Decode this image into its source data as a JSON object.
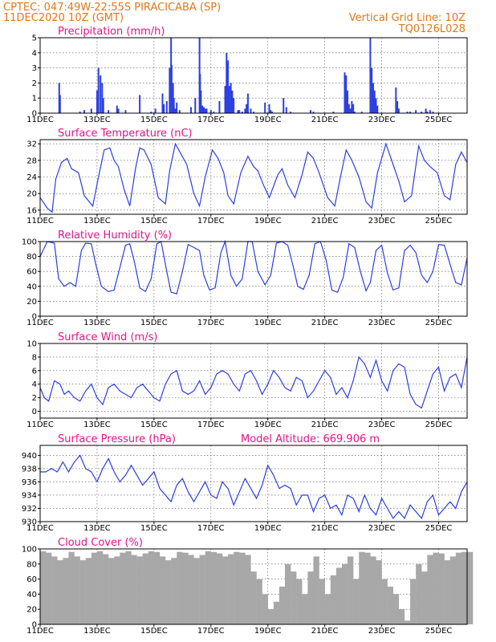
{
  "header": {
    "line1_left": "CPTEC:  047:49W-22:55S  PIRACICABA (SP)",
    "line2_left": "11DEC2020 10Z (GMT)",
    "line1_right": "Vertical Grid Line: 10Z",
    "line2_right": "TQ0126L028"
  },
  "colors": {
    "line": "#2c3fe0",
    "bars": "#2c3fe0",
    "cloud": "#a8a8a8",
    "title": "#e0158a",
    "header": "#e07818"
  },
  "chart_data": [
    {
      "type": "bar",
      "title": "Precipitation (mm/h)",
      "x_tick_labels": [
        "11DEC",
        "13DEC",
        "15DEC",
        "17DEC",
        "19DEC",
        "21DEC",
        "23DEC",
        "25DEC"
      ],
      "x_range_days": [
        0,
        15
      ],
      "y_tick_labels": [
        "0",
        "1",
        "2",
        "3",
        "4",
        "5"
      ],
      "ylim": [
        0,
        5
      ],
      "x_day": [
        0.67,
        0.7,
        1.4,
        1.55,
        1.8,
        2.0,
        2.05,
        2.12,
        2.18,
        2.22,
        2.4,
        2.7,
        2.75,
        3.0,
        3.5,
        3.9,
        4.05,
        4.3,
        4.35,
        4.45,
        4.55,
        4.6,
        4.62,
        4.67,
        4.7,
        4.75,
        4.8,
        4.9,
        5.3,
        5.45,
        5.6,
        5.62,
        5.65,
        5.67,
        5.7,
        5.75,
        5.8,
        5.85,
        6.0,
        6.1,
        6.3,
        6.5,
        6.55,
        6.6,
        6.65,
        6.7,
        6.75,
        6.8,
        6.95,
        7.0,
        7.1,
        7.2,
        7.25,
        7.3,
        7.4,
        7.5,
        7.9,
        8.05,
        8.1,
        8.15,
        8.55,
        8.65,
        8.8,
        9.5,
        9.6,
        10.3,
        10.7,
        10.75,
        10.8,
        10.85,
        10.9,
        10.95,
        11.0,
        11.05,
        11.3,
        11.6,
        11.65,
        11.7,
        11.75,
        11.8,
        11.85,
        12.5,
        12.55,
        12.6,
        12.9,
        13.0,
        13.2,
        13.4,
        13.55,
        13.6,
        13.7,
        13.8
      ],
      "values": [
        2.0,
        1.2,
        0.1,
        0.2,
        0.3,
        1.5,
        3.0,
        2.5,
        2.0,
        1.0,
        0.2,
        0.5,
        0.3,
        0.2,
        1.2,
        0.1,
        0.3,
        1.3,
        0.6,
        0.8,
        3.0,
        5.0,
        3.2,
        2.0,
        1.0,
        0.3,
        0.7,
        0.2,
        0.4,
        1.0,
        5.0,
        2.6,
        1.5,
        0.5,
        0.5,
        0.4,
        0.3,
        0.3,
        0.2,
        0.1,
        0.8,
        1.8,
        4.0,
        3.5,
        1.8,
        2.0,
        1.5,
        1.0,
        0.2,
        0.2,
        0.1,
        0.3,
        0.6,
        1.3,
        0.3,
        0.1,
        0.7,
        0.6,
        0.2,
        0.1,
        1.0,
        0.4,
        0.1,
        0.2,
        0.1,
        0.1,
        2.7,
        2.5,
        1.5,
        0.6,
        0.3,
        0.8,
        0.6,
        0.1,
        0.1,
        5.0,
        3.0,
        2.0,
        1.5,
        1.0,
        0.5,
        1.7,
        0.8,
        0.3,
        0.1,
        0.1,
        0.2,
        0.1,
        0.3,
        0.1,
        0.2,
        0.1
      ]
    },
    {
      "type": "line",
      "title": "Surface Temperature (nC)",
      "x_tick_labels": [
        "11DEC",
        "13DEC",
        "15DEC",
        "17DEC",
        "19DEC",
        "21DEC",
        "23DEC",
        "25DEC"
      ],
      "x_range_days": [
        0,
        15
      ],
      "y_tick_labels": [
        "16",
        "20",
        "24",
        "28",
        "32"
      ],
      "ylim": [
        15,
        33
      ],
      "x_day": [
        0.0,
        0.25,
        0.42,
        0.55,
        0.75,
        0.95,
        1.1,
        1.35,
        1.55,
        1.85,
        2.05,
        2.25,
        2.45,
        2.6,
        2.75,
        2.95,
        3.15,
        3.35,
        3.5,
        3.65,
        3.9,
        4.15,
        4.4,
        4.55,
        4.75,
        4.95,
        5.15,
        5.4,
        5.6,
        5.8,
        6.05,
        6.25,
        6.45,
        6.6,
        6.8,
        7.05,
        7.3,
        7.5,
        7.65,
        7.85,
        8.05,
        8.35,
        8.5,
        8.7,
        8.95,
        9.2,
        9.4,
        9.6,
        9.8,
        10.1,
        10.35,
        10.55,
        10.75,
        10.95,
        11.2,
        11.45,
        11.65,
        11.85,
        12.15,
        12.4,
        12.6,
        12.8,
        13.05,
        13.3,
        13.5,
        13.7,
        13.95,
        14.2,
        14.4,
        14.6,
        14.8,
        15.0
      ],
      "values": [
        19.0,
        16.5,
        15.5,
        23.5,
        27.5,
        28.5,
        26.0,
        25.0,
        19.5,
        17.0,
        24.0,
        30.5,
        31.0,
        28.0,
        26.5,
        21.0,
        17.0,
        26.0,
        31.0,
        30.5,
        27.0,
        19.0,
        17.5,
        25.5,
        32.0,
        29.5,
        27.0,
        20.0,
        17.0,
        24.0,
        30.5,
        28.5,
        25.0,
        19.5,
        17.5,
        25.0,
        29.0,
        26.5,
        25.5,
        22.0,
        19.0,
        24.5,
        26.0,
        22.0,
        19.0,
        24.5,
        30.0,
        28.5,
        25.0,
        19.0,
        17.0,
        24.0,
        30.5,
        28.0,
        24.0,
        18.0,
        16.5,
        25.0,
        32.0,
        27.0,
        23.0,
        18.0,
        19.5,
        31.5,
        28.0,
        26.5,
        25.0,
        19.5,
        18.5,
        27.0,
        30.0,
        27.5
      ]
    },
    {
      "type": "line",
      "title": "Relative Humidity (%)",
      "x_tick_labels": [
        "11DEC",
        "13DEC",
        "15DEC",
        "17DEC",
        "19DEC",
        "21DEC",
        "23DEC",
        "25DEC"
      ],
      "x_range_days": [
        0,
        15
      ],
      "y_tick_labels": [
        "0",
        "20",
        "40",
        "60",
        "80",
        "100"
      ],
      "ylim": [
        0,
        100
      ],
      "x_day": [
        0.0,
        0.25,
        0.5,
        0.65,
        0.85,
        1.05,
        1.25,
        1.45,
        1.6,
        1.8,
        1.95,
        2.15,
        2.4,
        2.6,
        2.8,
        3.0,
        3.15,
        3.3,
        3.5,
        3.7,
        3.9,
        4.1,
        4.25,
        4.45,
        4.6,
        4.8,
        5.0,
        5.2,
        5.4,
        5.6,
        5.75,
        5.95,
        6.15,
        6.35,
        6.5,
        6.7,
        6.9,
        7.1,
        7.3,
        7.45,
        7.65,
        7.9,
        8.1,
        8.3,
        8.5,
        8.7,
        8.9,
        9.05,
        9.25,
        9.45,
        9.65,
        9.85,
        10.05,
        10.25,
        10.45,
        10.65,
        10.85,
        11.05,
        11.25,
        11.45,
        11.6,
        11.8,
        12.0,
        12.2,
        12.4,
        12.6,
        12.8,
        13.0,
        13.2,
        13.4,
        13.6,
        13.8,
        14.0,
        14.2,
        14.4,
        14.6,
        14.8,
        15.0
      ],
      "values": [
        80.0,
        100.0,
        98.0,
        50.0,
        40.0,
        45.0,
        40.0,
        88.0,
        98.0,
        97.0,
        70.0,
        40.0,
        33.0,
        35.0,
        65.0,
        95.0,
        97.0,
        75.0,
        38.0,
        33.0,
        50.0,
        97.0,
        100.0,
        60.0,
        32.0,
        30.0,
        60.0,
        96.0,
        92.0,
        88.0,
        55.0,
        35.0,
        38.0,
        85.0,
        100.0,
        55.0,
        40.0,
        50.0,
        100.0,
        100.0,
        60.0,
        42.0,
        55.0,
        98.0,
        100.0,
        95.0,
        65.0,
        40.0,
        36.0,
        55.0,
        97.0,
        100.0,
        75.0,
        35.0,
        32.0,
        52.0,
        97.0,
        92.0,
        60.0,
        34.0,
        45.0,
        88.0,
        95.0,
        58.0,
        35.0,
        38.0,
        88.0,
        95.0,
        85.0,
        55.0,
        45.0,
        60.0,
        96.0,
        95.0,
        70.0,
        45.0,
        42.0,
        78.0
      ]
    },
    {
      "type": "line",
      "title": "Surface Wind (m/s)",
      "x_tick_labels": [
        "11DEC",
        "13DEC",
        "15DEC",
        "17DEC",
        "19DEC",
        "21DEC",
        "23DEC",
        "25DEC"
      ],
      "x_range_days": [
        0,
        15
      ],
      "y_tick_labels": [
        "0",
        "2",
        "4",
        "6",
        "8",
        "10"
      ],
      "ylim": [
        -1,
        10
      ],
      "x_day": [
        0.0,
        0.15,
        0.3,
        0.5,
        0.7,
        0.85,
        1.0,
        1.2,
        1.4,
        1.6,
        1.8,
        2.0,
        2.2,
        2.4,
        2.6,
        2.8,
        3.0,
        3.2,
        3.4,
        3.6,
        3.8,
        4.0,
        4.2,
        4.4,
        4.6,
        4.8,
        5.0,
        5.2,
        5.4,
        5.6,
        5.8,
        6.0,
        6.2,
        6.4,
        6.6,
        6.8,
        7.0,
        7.2,
        7.4,
        7.6,
        7.8,
        8.0,
        8.2,
        8.4,
        8.6,
        8.8,
        9.0,
        9.2,
        9.4,
        9.6,
        9.8,
        10.0,
        10.2,
        10.4,
        10.6,
        10.8,
        11.0,
        11.2,
        11.4,
        11.6,
        11.8,
        12.0,
        12.2,
        12.4,
        12.6,
        12.8,
        13.0,
        13.2,
        13.4,
        13.6,
        13.8,
        14.0,
        14.2,
        14.4,
        14.6,
        14.8,
        15.0
      ],
      "values": [
        3.5,
        2.0,
        1.5,
        4.5,
        4.0,
        2.5,
        3.0,
        2.0,
        1.5,
        3.0,
        4.0,
        2.0,
        1.0,
        3.5,
        4.0,
        3.0,
        2.5,
        2.0,
        3.5,
        4.0,
        3.0,
        2.0,
        1.5,
        4.0,
        5.5,
        6.0,
        3.0,
        2.5,
        3.0,
        4.5,
        2.5,
        3.5,
        5.5,
        6.0,
        5.5,
        4.0,
        3.0,
        5.5,
        6.0,
        4.5,
        2.5,
        4.0,
        6.0,
        5.0,
        3.5,
        3.0,
        5.0,
        4.5,
        2.0,
        3.0,
        4.5,
        6.0,
        5.0,
        2.5,
        3.5,
        2.0,
        4.5,
        8.0,
        7.0,
        5.0,
        7.5,
        4.5,
        3.0,
        6.0,
        7.0,
        6.5,
        2.5,
        1.0,
        0.5,
        3.0,
        5.5,
        6.5,
        3.0,
        5.0,
        5.5,
        3.5,
        8.0
      ]
    },
    {
      "type": "line",
      "title": "Surface Pressure (hPa)",
      "annotation": "Model Altitude: 669.906 m",
      "x_tick_labels": [
        "11DEC",
        "13DEC",
        "15DEC",
        "17DEC",
        "19DEC",
        "21DEC",
        "23DEC",
        "25DEC"
      ],
      "x_range_days": [
        0,
        15
      ],
      "y_tick_labels": [
        "930",
        "932",
        "934",
        "936",
        "938",
        "940"
      ],
      "ylim": [
        930,
        941.5
      ],
      "x_day": [
        0.0,
        0.2,
        0.4,
        0.6,
        0.8,
        1.0,
        1.2,
        1.4,
        1.6,
        1.8,
        2.0,
        2.2,
        2.4,
        2.6,
        2.8,
        3.0,
        3.2,
        3.4,
        3.6,
        3.8,
        4.0,
        4.2,
        4.4,
        4.6,
        4.8,
        5.0,
        5.2,
        5.4,
        5.6,
        5.8,
        6.0,
        6.2,
        6.4,
        6.6,
        6.8,
        7.0,
        7.2,
        7.4,
        7.6,
        7.8,
        8.0,
        8.2,
        8.4,
        8.6,
        8.8,
        9.0,
        9.2,
        9.4,
        9.6,
        9.8,
        10.0,
        10.2,
        10.4,
        10.6,
        10.8,
        11.0,
        11.2,
        11.4,
        11.6,
        11.8,
        12.0,
        12.2,
        12.4,
        12.6,
        12.8,
        13.0,
        13.2,
        13.4,
        13.6,
        13.8,
        14.0,
        14.2,
        14.4,
        14.6,
        14.8,
        15.0
      ],
      "values": [
        937.5,
        937.5,
        938.0,
        937.5,
        939.0,
        937.5,
        939.0,
        940.0,
        938.0,
        937.5,
        936.0,
        938.0,
        939.5,
        937.5,
        936.0,
        937.0,
        938.5,
        937.0,
        935.5,
        936.5,
        937.5,
        935.0,
        934.0,
        933.0,
        935.5,
        936.5,
        934.5,
        933.0,
        934.5,
        936.0,
        934.0,
        933.5,
        936.0,
        935.0,
        932.5,
        934.5,
        936.5,
        935.0,
        933.5,
        935.5,
        938.5,
        937.0,
        935.0,
        935.5,
        935.0,
        932.5,
        934.0,
        934.0,
        931.5,
        933.5,
        934.0,
        932.0,
        932.5,
        931.0,
        934.0,
        933.5,
        931.5,
        934.0,
        932.0,
        931.0,
        933.5,
        932.0,
        930.5,
        931.5,
        930.5,
        932.5,
        931.5,
        930.5,
        933.0,
        934.0,
        931.0,
        932.0,
        933.0,
        932.0,
        934.5,
        936.0
      ]
    },
    {
      "type": "bar",
      "title": "Cloud Cover (%)",
      "x_tick_labels": [
        "11DEC",
        "13DEC",
        "15DEC",
        "17DEC",
        "19DEC",
        "21DEC",
        "23DEC",
        "25DEC"
      ],
      "x_range_days": [
        0,
        15
      ],
      "y_tick_labels": [
        "0",
        "20",
        "40",
        "60",
        "80",
        "100"
      ],
      "ylim": [
        0,
        100
      ],
      "x_day": [
        0.0,
        0.2,
        0.4,
        0.6,
        0.8,
        1.0,
        1.2,
        1.4,
        1.6,
        1.8,
        2.0,
        2.2,
        2.4,
        2.6,
        2.8,
        3.0,
        3.2,
        3.4,
        3.6,
        3.8,
        4.0,
        4.2,
        4.4,
        4.6,
        4.8,
        5.0,
        5.2,
        5.4,
        5.6,
        5.8,
        6.0,
        6.2,
        6.4,
        6.6,
        6.8,
        7.0,
        7.2,
        7.4,
        7.6,
        7.8,
        8.0,
        8.2,
        8.4,
        8.6,
        8.8,
        9.0,
        9.2,
        9.4,
        9.6,
        9.8,
        10.0,
        10.2,
        10.4,
        10.6,
        10.8,
        11.0,
        11.2,
        11.4,
        11.6,
        11.8,
        12.0,
        12.2,
        12.4,
        12.6,
        12.8,
        13.0,
        13.2,
        13.4,
        13.6,
        13.8,
        14.0,
        14.2,
        14.4,
        14.6,
        14.8,
        15.0
      ],
      "values": [
        97,
        95,
        90,
        85,
        88,
        96,
        90,
        85,
        88,
        95,
        97,
        93,
        88,
        90,
        95,
        97,
        92,
        90,
        94,
        97,
        96,
        90,
        85,
        88,
        96,
        95,
        92,
        88,
        92,
        97,
        96,
        94,
        90,
        93,
        96,
        95,
        92,
        70,
        60,
        40,
        20,
        30,
        50,
        80,
        70,
        60,
        40,
        70,
        90,
        60,
        40,
        65,
        75,
        80,
        90,
        60,
        96,
        95,
        90,
        85,
        60,
        50,
        40,
        20,
        5,
        60,
        80,
        70,
        92,
        95,
        94,
        85,
        90,
        95,
        96,
        96
      ]
    }
  ]
}
